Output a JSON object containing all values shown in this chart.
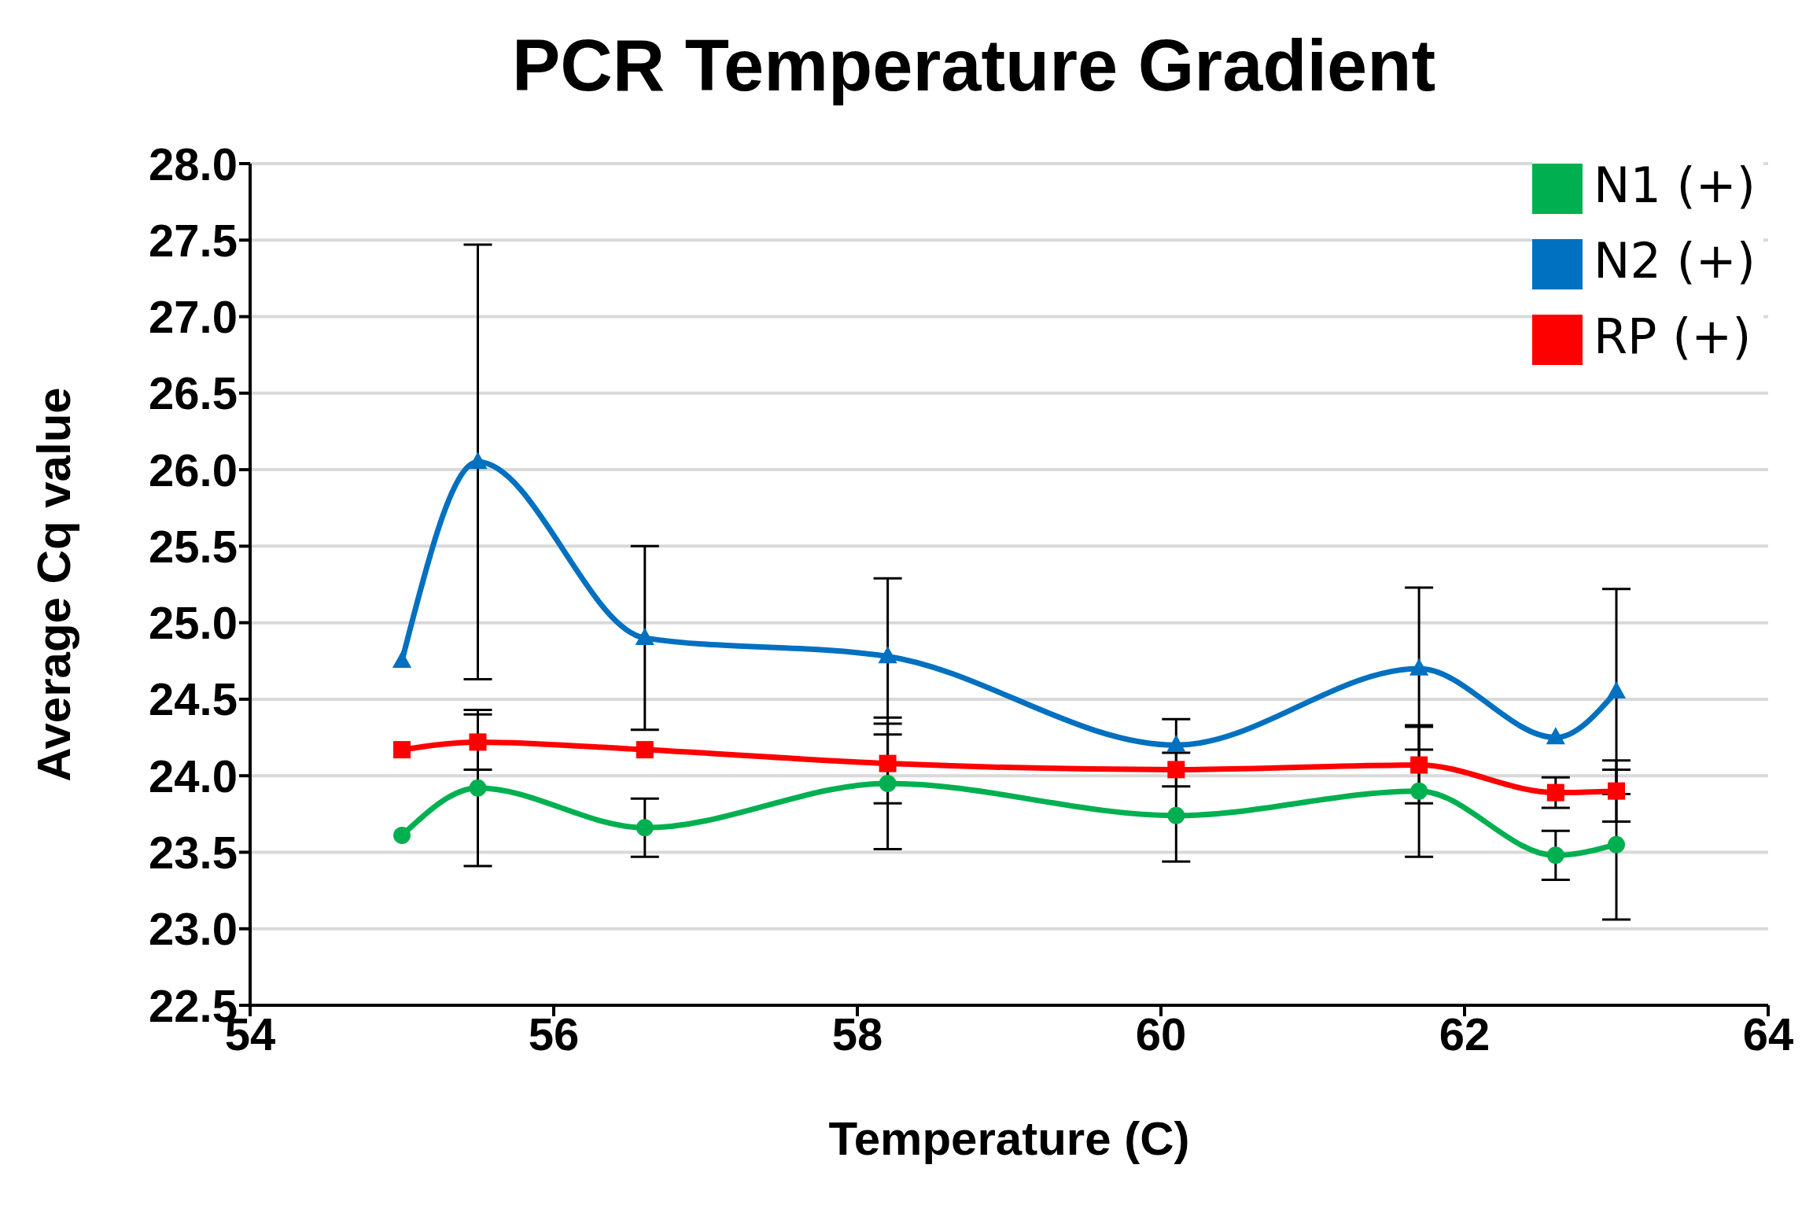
{
  "chart_data": {
    "type": "line",
    "title": "PCR Temperature Gradient",
    "xlabel": "Temperature (C)",
    "ylabel": "Average Cq value",
    "x": [
      55,
      55.5,
      56.6,
      58.2,
      60.1,
      61.7,
      62.6,
      63.0
    ],
    "series": [
      {
        "name": "N1 (+)",
        "color": "#00b050",
        "marker": "circle",
        "values": [
          23.61,
          23.92,
          23.66,
          23.95,
          23.74,
          23.9,
          23.48,
          23.55
        ],
        "errors": [
          null,
          0.51,
          0.19,
          0.43,
          0.3,
          0.43,
          0.16,
          0.49
        ]
      },
      {
        "name": "N2 (+)",
        "color": "#0070c0",
        "marker": "triangle",
        "values": [
          24.75,
          26.05,
          24.9,
          24.78,
          24.2,
          24.7,
          24.25,
          24.55
        ],
        "errors": [
          null,
          1.42,
          0.6,
          0.51,
          0.17,
          0.53,
          null,
          0.67
        ]
      },
      {
        "name": "RP (+)",
        "color": "#ff0000",
        "marker": "square",
        "values": [
          24.17,
          24.22,
          24.17,
          24.08,
          24.04,
          24.07,
          23.89,
          23.9
        ],
        "errors": [
          null,
          0.18,
          null,
          0.26,
          0.11,
          0.25,
          0.1,
          0.2
        ]
      }
    ],
    "xlim": [
      54,
      64
    ],
    "xticks": [
      54,
      56,
      58,
      60,
      62,
      64
    ],
    "ylim": [
      22.5,
      28.0
    ],
    "yticks": [
      22.5,
      {
        "value": 23,
        "label": "23.0"
      },
      23.5,
      {
        "value": 24,
        "label": "24.0"
      },
      24.5,
      {
        "value": 25,
        "label": "25.0"
      },
      25.5,
      {
        "value": 26,
        "label": "26.0"
      },
      26.5,
      {
        "value": 27,
        "label": "27.0"
      },
      27.5,
      {
        "value": 28,
        "label": "28.0"
      }
    ],
    "grid": "y",
    "legend": "top right",
    "line_style": "solid"
  }
}
